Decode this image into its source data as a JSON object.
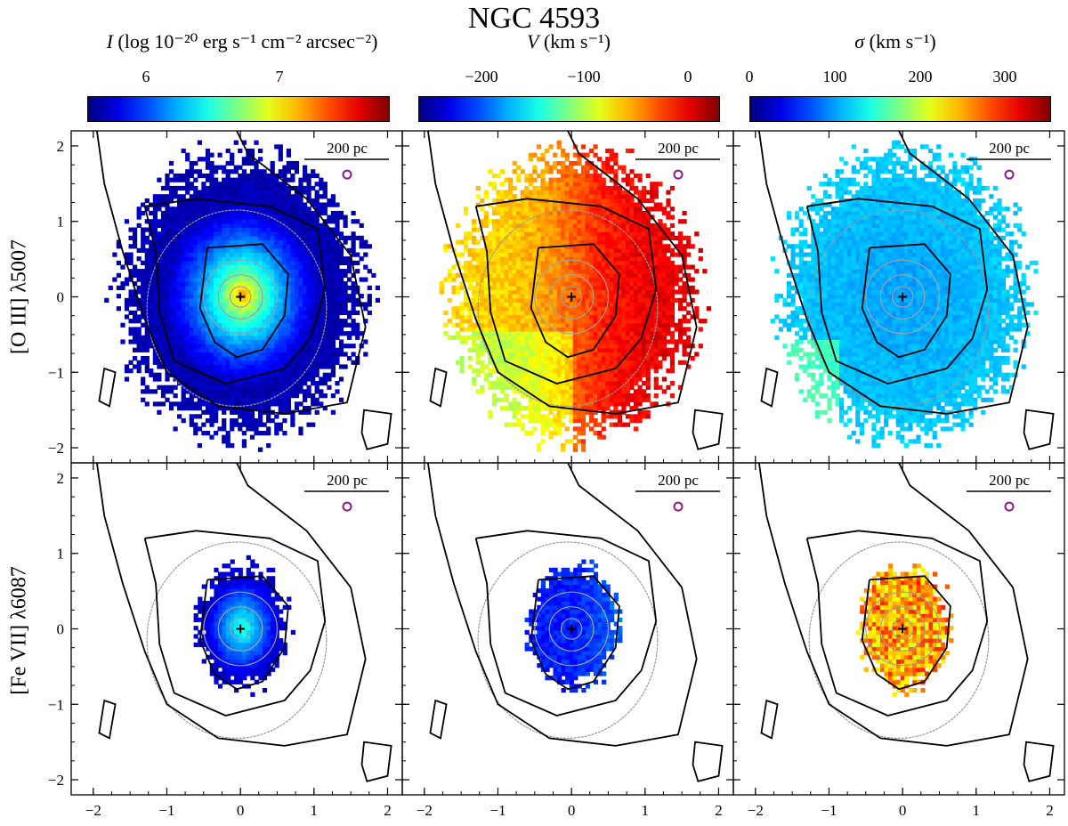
{
  "title": "NGC 4593",
  "colorbars": [
    {
      "label_var": "I",
      "label_unit": "(log 10⁻²⁰ erg s⁻¹ cm⁻² arcsec⁻²)",
      "tick_labels": [
        "6",
        "7"
      ],
      "colormap": "jet"
    },
    {
      "label_var": "V",
      "label_unit": "(km s⁻¹)",
      "tick_labels": [
        "−200",
        "−100",
        "0"
      ],
      "colormap": "jet"
    },
    {
      "label_var": "σ",
      "label_unit": "(km s⁻¹)",
      "tick_labels": [
        "0",
        "100",
        "200",
        "300"
      ],
      "colormap": "jet"
    }
  ],
  "rows": [
    {
      "label": "[O III] λ5007"
    },
    {
      "label": "[Fe VII] λ6087"
    }
  ],
  "scale_bar_label": "200 pc",
  "chart_data": {
    "type": "heatmap",
    "title": "NGC 4593",
    "panel_layout": "2 rows x 3 columns",
    "xlim": [
      -2.3,
      2.2
    ],
    "ylim": [
      -2.2,
      2.2
    ],
    "x_tick_labels": [
      "−2",
      "−1",
      "0",
      "1",
      "2"
    ],
    "y_tick_labels": [
      "−2",
      "−1",
      "0",
      "1",
      "2"
    ],
    "center_marker": [
      0,
      0
    ],
    "circle_marker": [
      1.45,
      1.62
    ],
    "colorbar_ranges": [
      {
        "quantity": "I",
        "range": [
          5.55,
          7.75
        ]
      },
      {
        "quantity": "V",
        "range": [
          -275,
          25
        ]
      },
      {
        "quantity": "sigma",
        "range": [
          0,
          355
        ]
      }
    ],
    "emission_extent": [
      {
        "line": "[O III] λ5007",
        "radius_x": 1.7,
        "radius_y": 1.95
      },
      {
        "line": "[Fe VII] λ6087",
        "radius_x": 0.65,
        "radius_y": 0.85
      }
    ],
    "contours_black": [
      [
        [
          -1.95,
          2.2
        ],
        [
          -1.85,
          1.5
        ],
        [
          -1.6,
          0.6
        ],
        [
          -1.3,
          -0.3
        ],
        [
          -1.0,
          -1.0
        ],
        [
          -0.3,
          -1.45
        ],
        [
          0.6,
          -1.55
        ],
        [
          1.45,
          -1.4
        ],
        [
          1.7,
          -0.4
        ],
        [
          1.5,
          0.55
        ],
        [
          0.9,
          1.3
        ],
        [
          0.1,
          1.9
        ],
        [
          -0.05,
          2.2
        ]
      ],
      [
        [
          -1.3,
          1.2
        ],
        [
          -0.6,
          1.3
        ],
        [
          0.4,
          1.2
        ],
        [
          1.05,
          0.9
        ],
        [
          1.15,
          0.1
        ],
        [
          0.95,
          -0.55
        ],
        [
          0.6,
          -0.95
        ],
        [
          -0.2,
          -1.15
        ],
        [
          -0.9,
          -0.85
        ],
        [
          -1.1,
          -0.2
        ],
        [
          -1.15,
          0.6
        ],
        [
          -1.3,
          1.2
        ]
      ],
      [
        [
          -0.45,
          0.65
        ],
        [
          0.3,
          0.7
        ],
        [
          0.65,
          0.3
        ],
        [
          0.6,
          -0.25
        ],
        [
          0.3,
          -0.7
        ],
        [
          -0.05,
          -0.8
        ],
        [
          -0.35,
          -0.6
        ],
        [
          -0.55,
          -0.15
        ],
        [
          -0.45,
          0.65
        ]
      ]
    ]
  }
}
